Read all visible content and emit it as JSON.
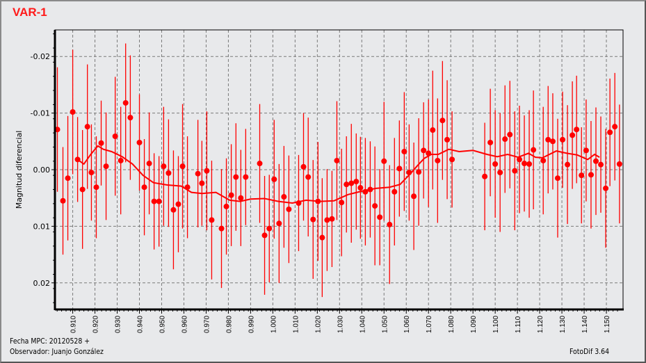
{
  "header": {
    "title": "VAR-1"
  },
  "footer": {
    "fecha": "Fecha MPC: 20120528 +",
    "observador": "Observador: Juanjo González",
    "version": "FotoDif 3.64"
  },
  "colors": {
    "series": "#ff0000",
    "grid": "#7a7a7a",
    "background": "#e8e9eb"
  },
  "chart_data": {
    "type": "scatter",
    "title": "VAR-1",
    "xlabel": "",
    "ylabel": "Magnitud diferencial",
    "xlim": [
      0.902,
      1.1575
    ],
    "ylim": [
      0.0247,
      -0.0247
    ],
    "y_inverted": true,
    "grid": true,
    "xticks": [
      "0.910",
      "0.920",
      "0.930",
      "0.940",
      "0.950",
      "0.960",
      "0.970",
      "0.980",
      "0.990",
      "1.000",
      "1.010",
      "1.020",
      "1.030",
      "1.040",
      "1.050",
      "1.060",
      "1.070",
      "1.080",
      "1.090",
      "1.100",
      "1.110",
      "1.120",
      "1.130",
      "1.140",
      "1.150"
    ],
    "yticks": [
      "-0.02",
      "-0.01",
      "0.00",
      "0.01",
      "0.02"
    ],
    "points": [
      [
        0.9031,
        -0.0071,
        0.011
      ],
      [
        0.9056,
        0.0055,
        0.0095
      ],
      [
        0.9078,
        0.0015,
        0.011
      ],
      [
        0.91,
        -0.0102,
        0.011
      ],
      [
        0.9122,
        -0.0018,
        0.0075
      ],
      [
        0.9144,
        0.0035,
        0.0105
      ],
      [
        0.9166,
        -0.0076,
        0.011
      ],
      [
        0.9184,
        0.0005,
        0.0085
      ],
      [
        0.9206,
        0.0031,
        0.009
      ],
      [
        0.9228,
        -0.0047,
        0.0075
      ],
      [
        0.925,
        -0.0006,
        0.0095
      ],
      [
        0.9291,
        -0.0059,
        0.0105
      ],
      [
        0.9316,
        -0.0016,
        0.0095
      ],
      [
        0.9338,
        -0.0118,
        0.0105
      ],
      [
        0.9359,
        -0.0092,
        0.011
      ],
      [
        0.94,
        -0.0048,
        0.0085
      ],
      [
        0.9422,
        0.0031,
        0.0085
      ],
      [
        0.9444,
        -0.0011,
        0.009
      ],
      [
        0.9466,
        0.0056,
        0.0085
      ],
      [
        0.9488,
        0.0056,
        0.008
      ],
      [
        0.9509,
        -0.0006,
        0.0105
      ],
      [
        0.9531,
        0.0006,
        0.0095
      ],
      [
        0.9553,
        0.0071,
        0.0105
      ],
      [
        0.9575,
        0.0061,
        0.0085
      ],
      [
        0.9594,
        -0.0006,
        0.011
      ],
      [
        0.9616,
        0.0031,
        0.009
      ],
      [
        0.9663,
        0.0007,
        0.0095
      ],
      [
        0.9681,
        0.0024,
        0.0075
      ],
      [
        0.9703,
        0.0002,
        0.0105
      ],
      [
        0.9725,
        0.0089,
        0.0105
      ],
      [
        0.9769,
        0.0104,
        0.0105
      ],
      [
        0.9791,
        0.0065,
        0.0085
      ],
      [
        0.9813,
        0.0045,
        0.009
      ],
      [
        0.9834,
        0.0013,
        0.0095
      ],
      [
        0.9856,
        0.005,
        0.0085
      ],
      [
        0.9878,
        0.0013,
        0.0085
      ],
      [
        0.9941,
        -0.0011,
        0.0105
      ],
      [
        0.9963,
        0.0116,
        0.0105
      ],
      [
        0.9984,
        0.0104,
        0.0095
      ],
      [
        1.0006,
        0.0017,
        0.0105
      ],
      [
        1.0028,
        0.0095,
        0.0105
      ],
      [
        1.005,
        0.0048,
        0.009
      ],
      [
        1.0072,
        0.007,
        0.0095
      ],
      [
        1.0116,
        0.0059,
        0.0085
      ],
      [
        1.0138,
        -0.0005,
        0.0095
      ],
      [
        1.0159,
        0.0013,
        0.0105
      ],
      [
        1.0181,
        0.0088,
        0.0105
      ],
      [
        1.0203,
        0.0056,
        0.0105
      ],
      [
        1.0222,
        0.012,
        0.0105
      ],
      [
        1.0244,
        0.0089,
        0.009
      ],
      [
        1.0266,
        0.0087,
        0.0085
      ],
      [
        1.0288,
        -0.0016,
        0.0105
      ],
      [
        1.0309,
        0.0058,
        0.0095
      ],
      [
        1.0331,
        0.0026,
        0.0085
      ],
      [
        1.0353,
        0.0024,
        0.0105
      ],
      [
        1.0375,
        0.0021,
        0.0085
      ],
      [
        1.0394,
        0.0032,
        0.009
      ],
      [
        1.0416,
        0.0039,
        0.0095
      ],
      [
        1.0438,
        0.0035,
        0.0085
      ],
      [
        1.0459,
        0.0064,
        0.0105
      ],
      [
        1.0481,
        0.0084,
        0.0085
      ],
      [
        1.05,
        -0.0015,
        0.0105
      ],
      [
        1.0525,
        0.0097,
        0.0105
      ],
      [
        1.0547,
        0.0039,
        0.0095
      ],
      [
        1.0569,
        -0.0002,
        0.0085
      ],
      [
        1.0591,
        -0.0032,
        0.0105
      ],
      [
        1.0613,
        0.0005,
        0.0085
      ],
      [
        1.0634,
        0.0047,
        0.0095
      ],
      [
        1.0656,
        0.0004,
        0.0095
      ],
      [
        1.0678,
        -0.0034,
        0.0085
      ],
      [
        1.07,
        -0.0029,
        0.0095
      ],
      [
        1.0719,
        -0.007,
        0.0105
      ],
      [
        1.0741,
        -0.0016,
        0.011
      ],
      [
        1.0763,
        -0.0087,
        0.0105
      ],
      [
        1.0784,
        -0.0053,
        0.0105
      ],
      [
        1.0806,
        -0.0018,
        0.0085
      ],
      [
        1.0953,
        0.0012,
        0.0095
      ],
      [
        1.0978,
        -0.0048,
        0.0095
      ],
      [
        1.1,
        -0.001,
        0.0095
      ],
      [
        1.1022,
        0.0005,
        0.0105
      ],
      [
        1.1044,
        -0.0054,
        0.0095
      ],
      [
        1.1066,
        -0.0062,
        0.0095
      ],
      [
        1.1088,
        0.0002,
        0.0105
      ],
      [
        1.1109,
        -0.0018,
        0.0095
      ],
      [
        1.1131,
        -0.0011,
        0.0085
      ],
      [
        1.1153,
        -0.001,
        0.0095
      ],
      [
        1.1172,
        -0.0035,
        0.0105
      ],
      [
        1.1216,
        -0.0016,
        0.0095
      ],
      [
        1.1238,
        -0.0053,
        0.0095
      ],
      [
        1.1259,
        -0.005,
        0.0085
      ],
      [
        1.1281,
        0.0015,
        0.0105
      ],
      [
        1.1303,
        -0.0053,
        0.0085
      ],
      [
        1.1325,
        -0.0009,
        0.0105
      ],
      [
        1.1347,
        -0.0061,
        0.0095
      ],
      [
        1.1366,
        -0.0071,
        0.0095
      ],
      [
        1.1388,
        0.001,
        0.0085
      ],
      [
        1.1409,
        -0.0034,
        0.009
      ],
      [
        1.1431,
        0.0009,
        0.0095
      ],
      [
        1.1453,
        -0.0015,
        0.0095
      ],
      [
        1.1475,
        -0.0009,
        0.0085
      ],
      [
        1.1497,
        0.0033,
        0.0105
      ],
      [
        1.1516,
        -0.0066,
        0.0095
      ],
      [
        1.1538,
        -0.0076,
        0.0095
      ],
      [
        1.1559,
        -0.001,
        0.0105
      ]
    ],
    "trend": [
      [
        0.9125,
        -0.0017
      ],
      [
        0.915,
        -0.001
      ],
      [
        0.9181,
        -0.0027
      ],
      [
        0.9213,
        -0.0042
      ],
      [
        0.9238,
        -0.0036
      ],
      [
        0.9275,
        -0.0032
      ],
      [
        0.9322,
        -0.0023
      ],
      [
        0.9369,
        -0.001
      ],
      [
        0.9416,
        0.001
      ],
      [
        0.9463,
        0.0023
      ],
      [
        0.9525,
        0.0027
      ],
      [
        0.9588,
        0.0029
      ],
      [
        0.9634,
        0.004
      ],
      [
        0.9681,
        0.0042
      ],
      [
        0.9744,
        0.004
      ],
      [
        0.9806,
        0.0054
      ],
      [
        0.9853,
        0.0056
      ],
      [
        0.99,
        0.0052
      ],
      [
        0.9963,
        0.0051
      ],
      [
        1.0025,
        0.0056
      ],
      [
        1.0088,
        0.0059
      ],
      [
        1.015,
        0.0054
      ],
      [
        1.0213,
        0.0056
      ],
      [
        1.0275,
        0.0055
      ],
      [
        1.0338,
        0.0044
      ],
      [
        1.04,
        0.0038
      ],
      [
        1.0463,
        0.0033
      ],
      [
        1.0525,
        0.0031
      ],
      [
        1.0572,
        0.0026
      ],
      [
        1.0619,
        0.0007
      ],
      [
        1.065,
        -0.0007
      ],
      [
        1.0681,
        -0.002
      ],
      [
        1.0713,
        -0.0027
      ],
      [
        1.0744,
        -0.0027
      ],
      [
        1.0791,
        -0.0036
      ],
      [
        1.0838,
        -0.0032
      ],
      [
        1.09,
        -0.0034
      ],
      [
        1.0963,
        -0.0027
      ],
      [
        1.1009,
        -0.0023
      ],
      [
        1.1056,
        -0.0027
      ],
      [
        1.1103,
        -0.0022
      ],
      [
        1.115,
        -0.0029
      ],
      [
        1.1181,
        -0.0022
      ],
      [
        1.1213,
        -0.0021
      ],
      [
        1.1275,
        -0.0033
      ],
      [
        1.1322,
        -0.0029
      ],
      [
        1.1369,
        -0.0026
      ],
      [
        1.1416,
        -0.0018
      ],
      [
        1.1447,
        -0.0027
      ],
      [
        1.1469,
        -0.0022
      ]
    ]
  }
}
